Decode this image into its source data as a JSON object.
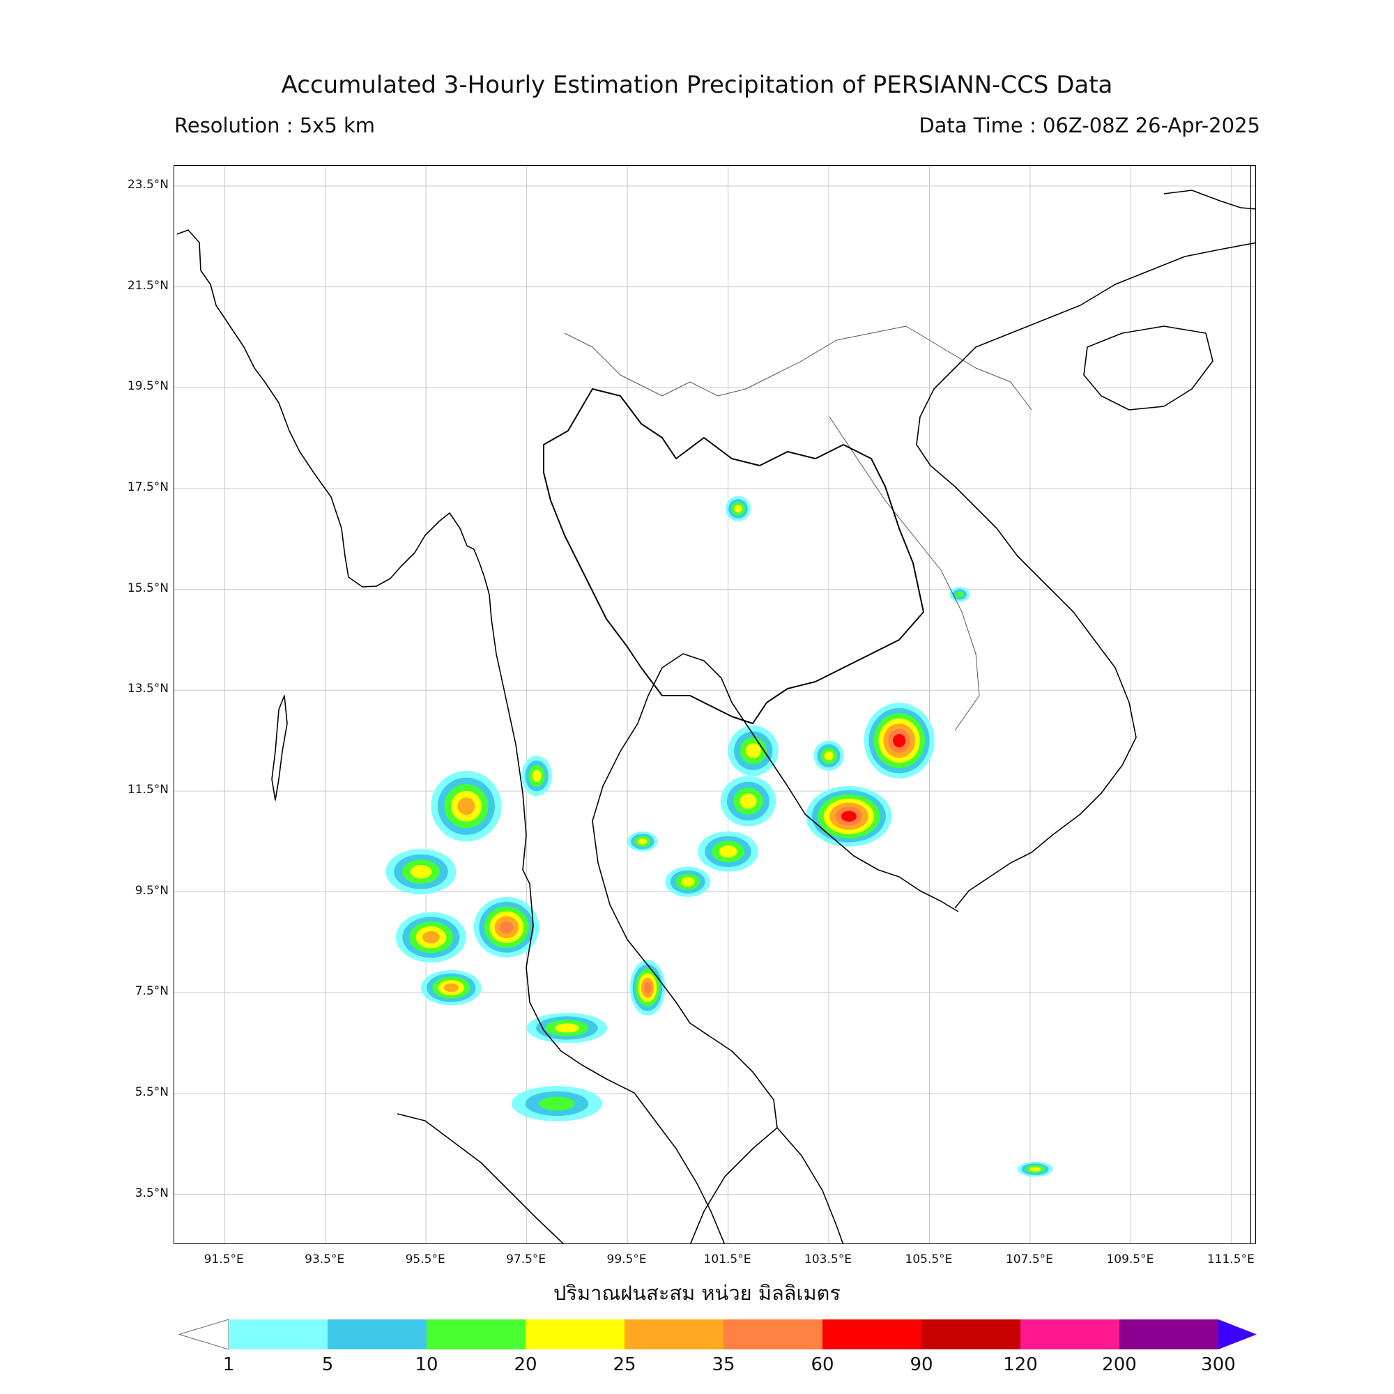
{
  "header": {
    "title": "Accumulated 3-Hourly Estimation Precipitation of PERSIANN-CCS Data",
    "resolution": "Resolution : 5x5 km",
    "data_time": "Data Time : 06Z-08Z 26-Apr-2025"
  },
  "map": {
    "projection": "PlateCarree",
    "lon_range": [
      90.5,
      112.0
    ],
    "lat_range": [
      2.5,
      23.9
    ],
    "grid": true,
    "lat_ticks": [
      {
        "value": 23.5,
        "label": "23.5°N"
      },
      {
        "value": 21.5,
        "label": "21.5°N"
      },
      {
        "value": 19.5,
        "label": "19.5°N"
      },
      {
        "value": 17.5,
        "label": "17.5°N"
      },
      {
        "value": 15.5,
        "label": "15.5°N"
      },
      {
        "value": 13.5,
        "label": "13.5°N"
      },
      {
        "value": 11.5,
        "label": "11.5°N"
      },
      {
        "value": 9.5,
        "label": "9.5°N"
      },
      {
        "value": 7.5,
        "label": "7.5°N"
      },
      {
        "value": 5.5,
        "label": "5.5°N"
      },
      {
        "value": 3.5,
        "label": "3.5°N"
      }
    ],
    "lon_ticks": [
      {
        "value": 91.5,
        "label": "91.5°E"
      },
      {
        "value": 93.5,
        "label": "93.5°E"
      },
      {
        "value": 95.5,
        "label": "95.5°E"
      },
      {
        "value": 97.5,
        "label": "97.5°E"
      },
      {
        "value": 99.5,
        "label": "99.5°E"
      },
      {
        "value": 101.5,
        "label": "101.5°E"
      },
      {
        "value": 103.5,
        "label": "103.5°E"
      },
      {
        "value": 105.5,
        "label": "105.5°E"
      },
      {
        "value": 107.5,
        "label": "107.5°E"
      },
      {
        "value": 109.5,
        "label": "109.5°E"
      },
      {
        "value": 111.5,
        "label": "111.5°E"
      }
    ],
    "x_axis_label": "ปริมาณฝนสะสม หน่วย มิลลิเมตร",
    "rain_cells": [
      {
        "lon": 96.3,
        "lat": 11.2,
        "rx": 0.7,
        "ry": 0.7,
        "max": 25
      },
      {
        "lon": 95.4,
        "lat": 9.9,
        "rx": 0.7,
        "ry": 0.45,
        "max": 20
      },
      {
        "lon": 97.1,
        "lat": 8.8,
        "rx": 0.65,
        "ry": 0.6,
        "max": 35
      },
      {
        "lon": 95.6,
        "lat": 8.6,
        "rx": 0.7,
        "ry": 0.5,
        "max": 25
      },
      {
        "lon": 96.0,
        "lat": 7.6,
        "rx": 0.6,
        "ry": 0.35,
        "max": 25
      },
      {
        "lon": 98.3,
        "lat": 6.8,
        "rx": 0.8,
        "ry": 0.3,
        "max": 20
      },
      {
        "lon": 98.1,
        "lat": 5.3,
        "rx": 0.9,
        "ry": 0.35,
        "max": 10
      },
      {
        "lon": 97.7,
        "lat": 11.8,
        "rx": 0.3,
        "ry": 0.4,
        "max": 20
      },
      {
        "lon": 101.5,
        "lat": 10.3,
        "rx": 0.6,
        "ry": 0.4,
        "max": 20
      },
      {
        "lon": 100.7,
        "lat": 9.7,
        "rx": 0.45,
        "ry": 0.3,
        "max": 20
      },
      {
        "lon": 101.9,
        "lat": 11.3,
        "rx": 0.55,
        "ry": 0.5,
        "max": 20
      },
      {
        "lon": 102.0,
        "lat": 12.3,
        "rx": 0.5,
        "ry": 0.5,
        "max": 20
      },
      {
        "lon": 104.9,
        "lat": 12.5,
        "rx": 0.7,
        "ry": 0.75,
        "max": 60
      },
      {
        "lon": 103.9,
        "lat": 11.0,
        "rx": 0.85,
        "ry": 0.6,
        "max": 60
      },
      {
        "lon": 99.9,
        "lat": 7.6,
        "rx": 0.35,
        "ry": 0.55,
        "max": 35
      },
      {
        "lon": 99.8,
        "lat": 10.5,
        "rx": 0.3,
        "ry": 0.2,
        "max": 20
      },
      {
        "lon": 101.7,
        "lat": 17.1,
        "rx": 0.25,
        "ry": 0.25,
        "max": 20
      },
      {
        "lon": 107.6,
        "lat": 4.0,
        "rx": 0.35,
        "ry": 0.15,
        "max": 20
      },
      {
        "lon": 103.5,
        "lat": 12.2,
        "rx": 0.3,
        "ry": 0.3,
        "max": 20
      },
      {
        "lon": 106.1,
        "lat": 15.4,
        "rx": 0.2,
        "ry": 0.15,
        "max": 10
      }
    ]
  },
  "colorbar": {
    "levels": [
      "1",
      "5",
      "10",
      "20",
      "25",
      "35",
      "60",
      "90",
      "120",
      "200",
      "300"
    ],
    "colors": [
      "#80ffff",
      "#40c8e8",
      "#48ff30",
      "#ffff00",
      "#ffa820",
      "#ff8040",
      "#ff0000",
      "#c80000",
      "#ff1890",
      "#8c0090"
    ],
    "over_color": "#3c00ff",
    "under_color": "#ffffff"
  }
}
